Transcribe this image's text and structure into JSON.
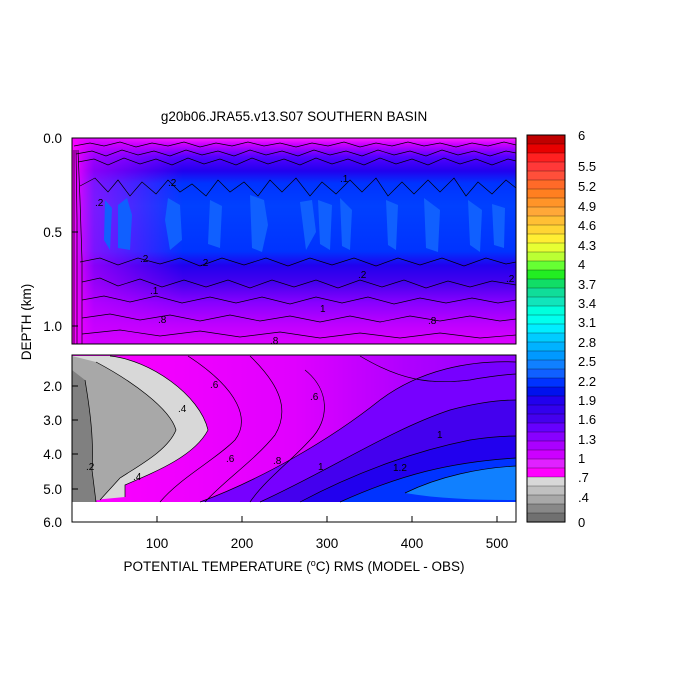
{
  "chart_data": {
    "type": "heatmap",
    "title": "g20b06.JRA55.v13.S07 SOUTHERN BASIN",
    "xlabel": "POTENTIAL TEMPERATURE (",
    "xlabel_degree_sup": "o",
    "xlabel_end": "C) RMS (MODEL - OBS)",
    "ylabel": "DEPTH (km)",
    "xlim": [
      0,
      520
    ],
    "x_ticks": [
      100,
      200,
      300,
      400,
      500
    ],
    "upper_panel": {
      "ylim": [
        0.0,
        1.1
      ],
      "y_ticks": [
        "0.0",
        "0.5",
        "1.0"
      ]
    },
    "lower_panel": {
      "ylim": [
        1.1,
        6.0
      ],
      "y_ticks": [
        "2.0",
        "3.0",
        "4.0",
        "5.0",
        "6.0"
      ]
    },
    "colorbar": {
      "label_values": [
        "6",
        "5.5",
        "5.2",
        "4.9",
        "4.6",
        "4.3",
        "4",
        "3.7",
        "3.4",
        "3.1",
        "2.8",
        "2.5",
        "2.2",
        "1.9",
        "1.6",
        "1.3",
        "1",
        ".7",
        ".4",
        "0"
      ],
      "colors": [
        "#c00000",
        "#e80000",
        "#ff2020",
        "#ff3838",
        "#ff4f3a",
        "#ff6a28",
        "#ff7f20",
        "#ff9428",
        "#ffa838",
        "#ffbf34",
        "#ffd533",
        "#ffee33",
        "#e7ff33",
        "#bbff33",
        "#66ff33",
        "#22ee22",
        "#11dd66",
        "#10dd99",
        "#11e5bb",
        "#00ffdd",
        "#00ffee",
        "#00eeff",
        "#00ccff",
        "#00b2ff",
        "#0099ff",
        "#1080ff",
        "#1060ff",
        "#0033ff",
        "#0011ee",
        "#2200ee",
        "#3300ee",
        "#4400ee",
        "#6600ff",
        "#8800ff",
        "#aa00ff",
        "#cc00ff",
        "#e022ff",
        "#ff00ff",
        "#d8d8d8",
        "#c0c0c0",
        "#a8a8a8",
        "#888888",
        "#707070"
      ]
    },
    "contour_labels_upper": [
      ".2",
      ".2",
      ".2",
      ".2",
      ".2",
      ".1",
      "1",
      ".8",
      ".8",
      ".8",
      ".1",
      ".2"
    ],
    "contour_labels_lower": [
      ".6",
      ".6",
      ".4",
      ".4",
      ".2",
      ".6",
      ".8",
      "1",
      "1",
      "1.2"
    ]
  }
}
